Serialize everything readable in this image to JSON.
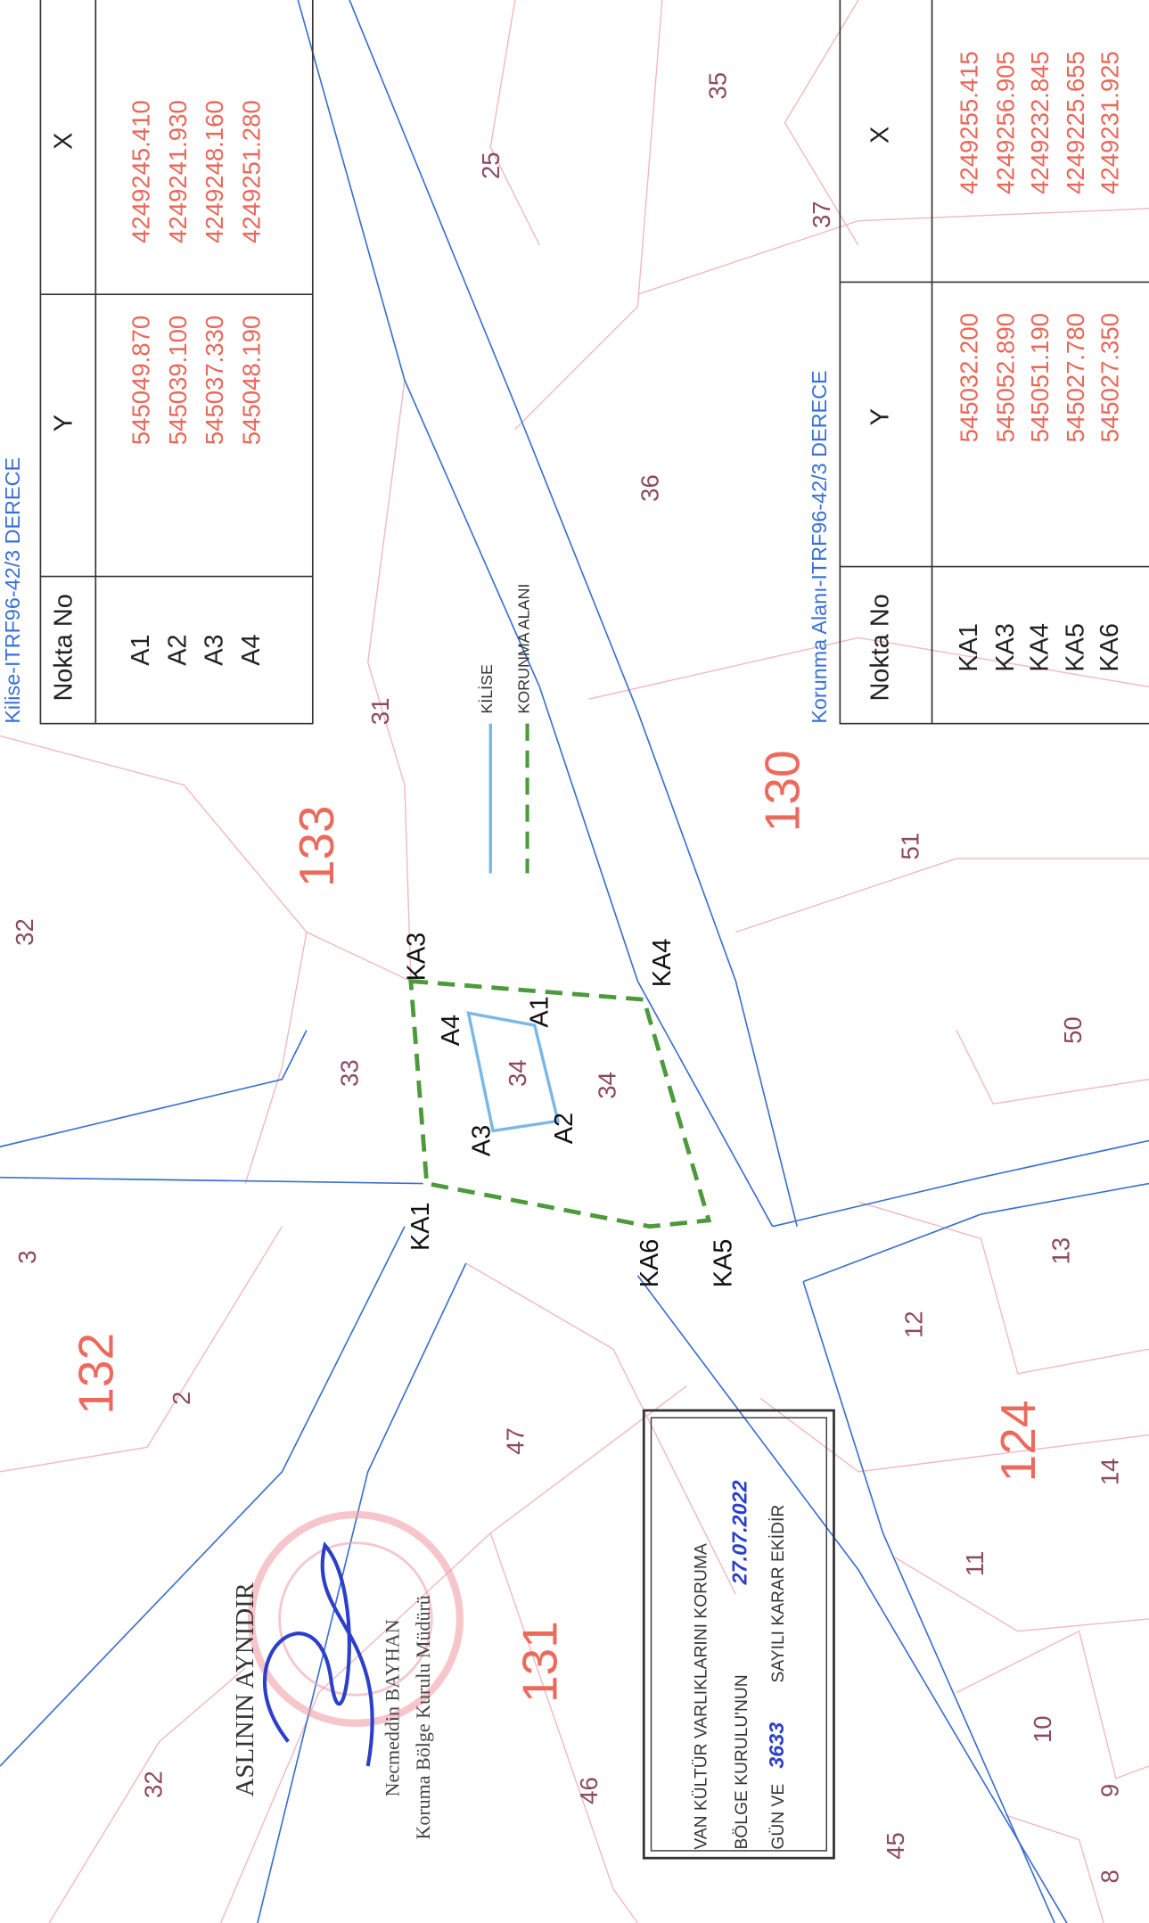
{
  "tables": [
    {
      "title": "Kilise-ITRF96-42/3 DERECE",
      "header": [
        "Nokta No",
        "Y",
        "X"
      ],
      "rows": [
        [
          "A1",
          "545049.870",
          "4249245.410"
        ],
        [
          "A2",
          "545039.100",
          "4249241.930"
        ],
        [
          "A3",
          "545037.330",
          "4249248.160"
        ],
        [
          "A4",
          "545048.190",
          "4249251.280"
        ]
      ]
    },
    {
      "title": "Korunma Alanı-ITRF96-42/3 DERECE",
      "header": [
        "Nokta No",
        "Y",
        "X"
      ],
      "rows": [
        [
          "KA1",
          "545032.200",
          "4249255.415"
        ],
        [
          "KA3",
          "545052.890",
          "4249256.905"
        ],
        [
          "KA4",
          "545051.190",
          "4249232.845"
        ],
        [
          "KA5",
          "545027.780",
          "4249225.655"
        ],
        [
          "KA6",
          "545027.350",
          "4249231.925"
        ]
      ]
    }
  ],
  "legend": [
    "KİLİSE",
    "KORUNMA ALANI"
  ],
  "blocks": [
    "133",
    "130",
    "132",
    "124",
    "131"
  ],
  "parcels": [
    "32",
    "3",
    "2",
    "33",
    "31",
    "25",
    "35",
    "36",
    "51",
    "50",
    "13",
    "12",
    "47",
    "11",
    "14",
    "10",
    "9",
    "8",
    "45",
    "46",
    "32",
    "34",
    "34",
    "37"
  ],
  "points": [
    "KA1",
    "KA3",
    "KA4",
    "KA5",
    "KA6",
    "A1",
    "A2",
    "A3",
    "A4"
  ],
  "stamp": {
    "lines": [
      "VAN KÜLTÜR VARLIKLARINI KORUMA",
      "BÖLGE KURULU'NUN",
      "27.07.2022",
      "GÜN VE",
      "3633",
      "SAYILI KARAR EKİDİR"
    ]
  },
  "certification": {
    "text": "ASLININ AYNIDIR",
    "name": "Necmeddin BAYHAN",
    "position": "Koruma Bölge Kurulu Müdürü"
  }
}
